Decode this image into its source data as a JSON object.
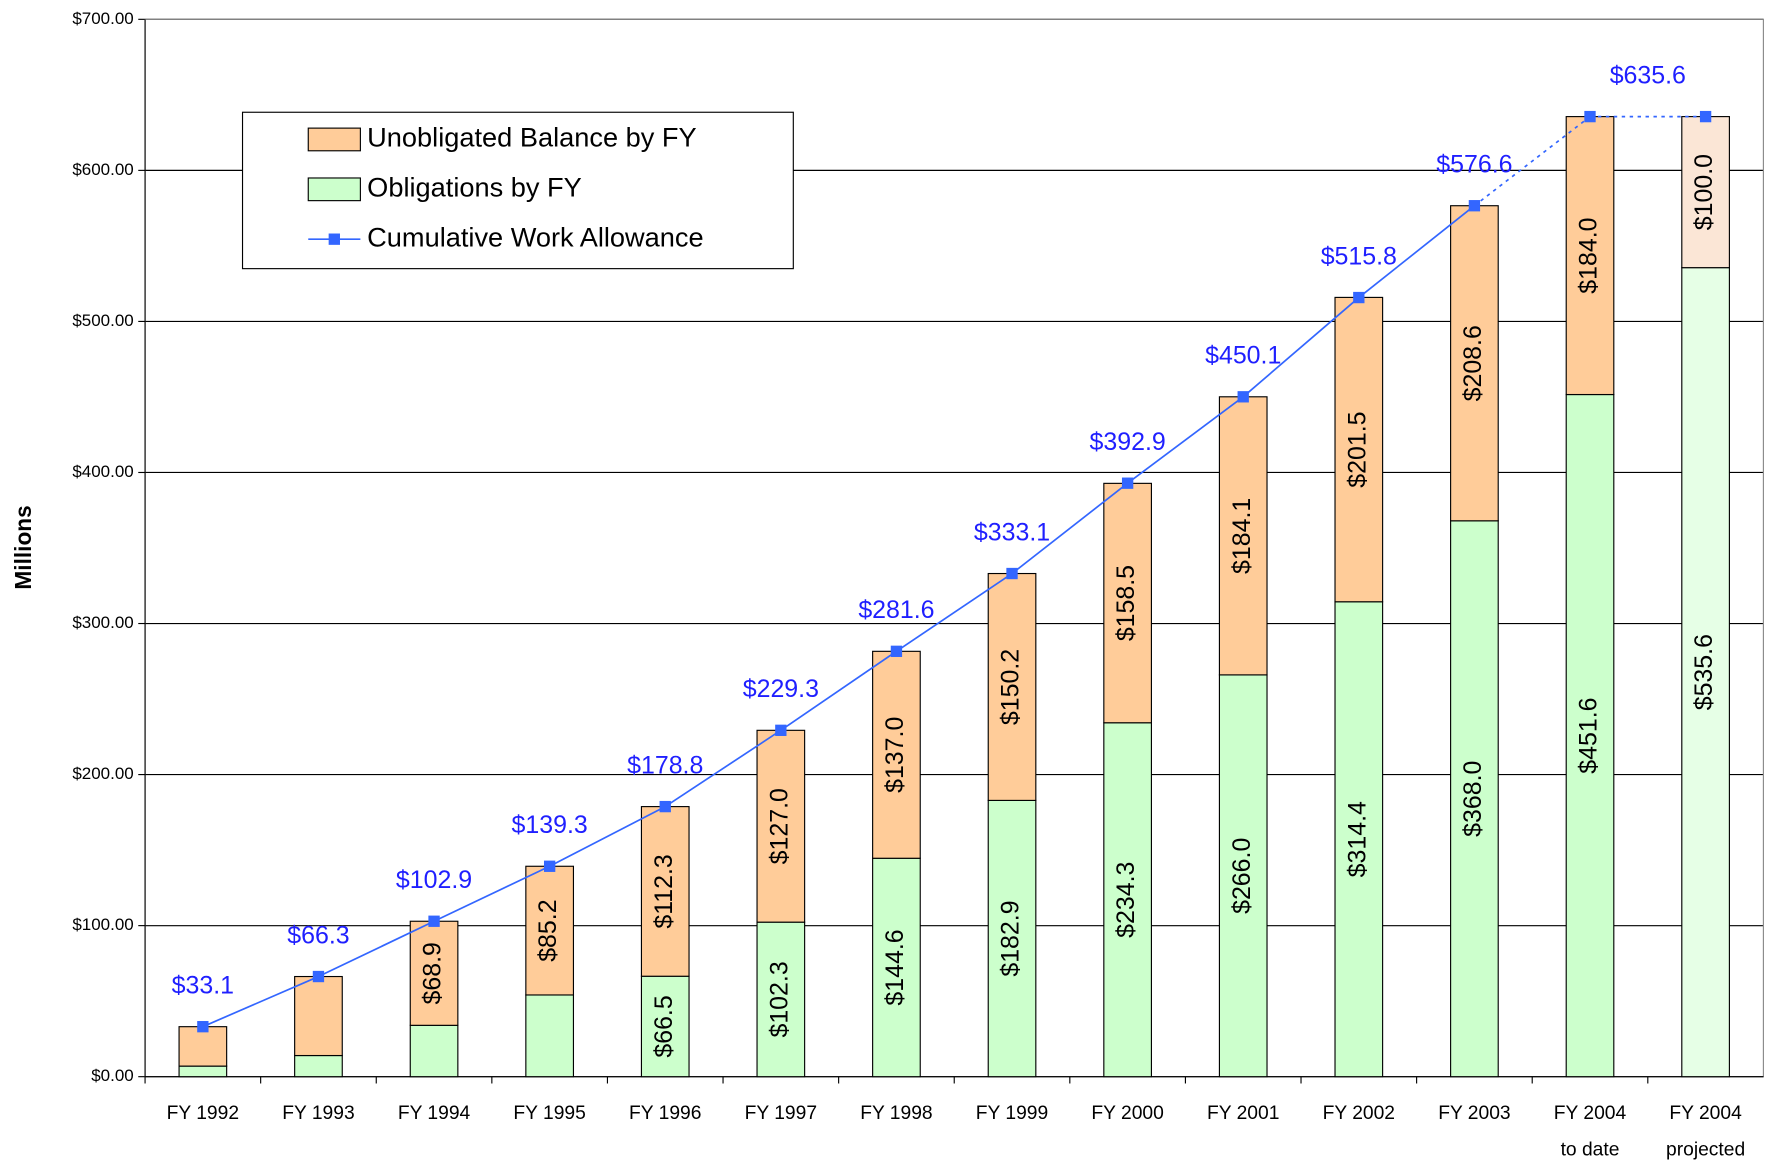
{
  "chart_data": {
    "type": "bar_line",
    "y_label": "Millions",
    "categories": [
      [
        "FY 1992"
      ],
      [
        "FY 1993"
      ],
      [
        "FY 1994"
      ],
      [
        "FY 1995"
      ],
      [
        "FY 1996"
      ],
      [
        "FY 1997"
      ],
      [
        "FY 1998"
      ],
      [
        "FY 1999"
      ],
      [
        "FY 2000"
      ],
      [
        "FY 2001"
      ],
      [
        "FY 2002"
      ],
      [
        "FY 2003"
      ],
      [
        "FY 2004",
        "to date"
      ],
      [
        "FY 2004",
        "projected"
      ]
    ],
    "series": [
      {
        "name": "Obligations by FY",
        "kind": "bar",
        "color": "#ccffcc",
        "colors": [
          "#ccffcc",
          "#ccffcc",
          "#ccffcc",
          "#ccffcc",
          "#ccffcc",
          "#ccffcc",
          "#ccffcc",
          "#ccffcc",
          "#ccffcc",
          "#ccffcc",
          "#ccffcc",
          "#ccffcc",
          "#ccffcc",
          "#e6ffe6"
        ],
        "values": [
          7,
          14,
          34,
          54.1,
          66.5,
          102.3,
          144.6,
          182.9,
          234.3,
          266.0,
          314.4,
          368.0,
          451.6,
          535.6
        ],
        "value_labels": [
          null,
          null,
          null,
          null,
          "$66.5",
          "$102.3",
          "$144.6",
          "$182.9",
          "$234.3",
          "$266.0",
          "$314.4",
          "$368.0",
          "$451.6",
          "$535.6"
        ]
      },
      {
        "name": "Unobligated Balance by FY",
        "kind": "bar",
        "color": "#ffcc99",
        "colors": [
          "#ffcc99",
          "#ffcc99",
          "#ffcc99",
          "#ffcc99",
          "#ffcc99",
          "#ffcc99",
          "#ffcc99",
          "#ffcc99",
          "#ffcc99",
          "#ffcc99",
          "#ffcc99",
          "#ffcc99",
          "#ffcc99",
          "#fbe6d6"
        ],
        "values": [
          26.1,
          52.3,
          68.9,
          85.2,
          112.3,
          127.0,
          137.0,
          150.2,
          158.5,
          184.1,
          201.5,
          208.6,
          184.0,
          100.0
        ],
        "value_labels": [
          null,
          null,
          "$68.9",
          "$85.2",
          "$112.3",
          "$127.0",
          "$137.0",
          "$150.2",
          "$158.5",
          "$184.1",
          "$201.5",
          "$208.6",
          "$184.0",
          "$100.0"
        ]
      },
      {
        "name": "Cumulative Work Allowance",
        "kind": "line",
        "color": "#3366ff",
        "label_color": "#1f1fff",
        "values": [
          33.1,
          66.3,
          102.9,
          139.3,
          178.8,
          229.3,
          281.6,
          333.1,
          392.9,
          450.1,
          515.8,
          576.6,
          635.6,
          635.6
        ],
        "value_labels": [
          "$33.1",
          "$66.3",
          "$102.9",
          "$139.3",
          "$178.8",
          "$229.3",
          "$281.6",
          "$333.1",
          "$392.9",
          "$450.1",
          "$515.8",
          "$576.6",
          "$635.6",
          null
        ],
        "segment_styles": [
          "solid",
          "solid",
          "solid",
          "solid",
          "solid",
          "solid",
          "solid",
          "solid",
          "solid",
          "solid",
          "solid",
          "dotted",
          "dotted"
        ]
      }
    ],
    "legend_order": [
      1,
      0,
      2
    ],
    "ylim": [
      0,
      700
    ],
    "yticks": [
      {
        "value": 0,
        "label": "$0.00"
      },
      {
        "value": 100,
        "label": "$100.00"
      },
      {
        "value": 200,
        "label": "$200.00"
      },
      {
        "value": 300,
        "label": "$300.00"
      },
      {
        "value": 400,
        "label": "$400.00"
      },
      {
        "value": 500,
        "label": "$500.00"
      },
      {
        "value": 600,
        "label": "$600.00"
      },
      {
        "value": 700,
        "label": "$700.00"
      }
    ],
    "grid": true
  }
}
